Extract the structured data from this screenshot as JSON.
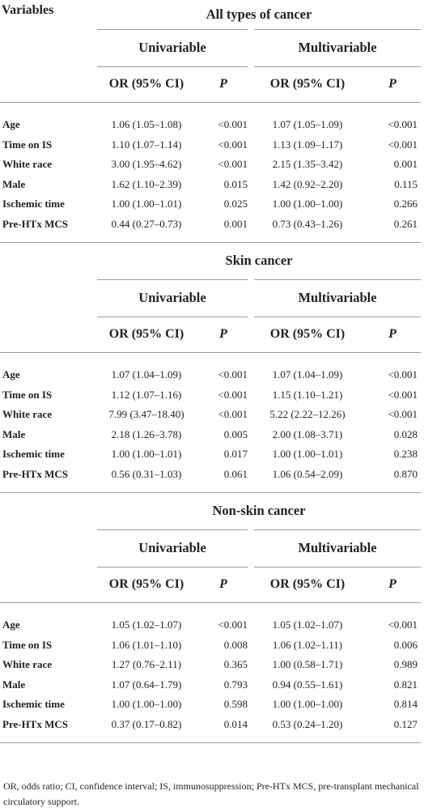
{
  "header": {
    "variables_label": "Variables"
  },
  "column_labels": {
    "univariable": "Univariable",
    "multivariable": "Multivariable",
    "or": "OR (95% CI)",
    "p": "P"
  },
  "sections": [
    {
      "title": "All types of cancer",
      "rows": [
        {
          "variable": "Age",
          "uni_or": "1.06 (1.05–1.08)",
          "uni_p": "<0.001",
          "multi_or": "1.07 (1.05–1.09)",
          "multi_p": "<0.001"
        },
        {
          "variable": "Time on IS",
          "uni_or": "1.10 (1.07–1.14)",
          "uni_p": "<0.001",
          "multi_or": "1.13 (1.09–1.17)",
          "multi_p": "<0.001"
        },
        {
          "variable": "White race",
          "uni_or": "3.00 (1.95–4.62)",
          "uni_p": "<0.001",
          "multi_or": "2.15 (1.35–3.42)",
          "multi_p": "0.001"
        },
        {
          "variable": "Male",
          "uni_or": "1.62 (1.10–2.39)",
          "uni_p": "0.015",
          "multi_or": "1.42 (0.92–2.20)",
          "multi_p": "0.115"
        },
        {
          "variable": "Ischemic time",
          "uni_or": "1.00 (1.00–1.01)",
          "uni_p": "0.025",
          "multi_or": "1.00 (1.00–1.00)",
          "multi_p": "0.266"
        },
        {
          "variable": "Pre-HTx MCS",
          "uni_or": "0.44 (0.27–0.73)",
          "uni_p": "0.001",
          "multi_or": "0.73 (0.43–1.26)",
          "multi_p": "0.261"
        }
      ]
    },
    {
      "title": "Skin cancer",
      "rows": [
        {
          "variable": "Age",
          "uni_or": "1.07 (1.04–1.09)",
          "uni_p": "<0.001",
          "multi_or": "1.07 (1.04–1.09)",
          "multi_p": "<0.001"
        },
        {
          "variable": "Time on IS",
          "uni_or": "1.12 (1.07–1.16)",
          "uni_p": "<0.001",
          "multi_or": "1.15 (1.10–1.21)",
          "multi_p": "<0.001"
        },
        {
          "variable": "White race",
          "uni_or": "7.99 (3.47–18.40)",
          "uni_p": "<0.001",
          "multi_or": "5.22 (2.22–12.26)",
          "multi_p": "<0.001"
        },
        {
          "variable": "Male",
          "uni_or": "2.18 (1.26–3.78)",
          "uni_p": "0.005",
          "multi_or": "2.00 (1.08–3.71)",
          "multi_p": "0.028"
        },
        {
          "variable": "Ischemic time",
          "uni_or": "1.00 (1.00–1.01)",
          "uni_p": "0.017",
          "multi_or": "1.00 (1.00–1.01)",
          "multi_p": "0.238"
        },
        {
          "variable": "Pre-HTx MCS",
          "uni_or": "0.56 (0.31–1.03)",
          "uni_p": "0.061",
          "multi_or": "1.06 (0.54–2.09)",
          "multi_p": "0.870"
        }
      ]
    },
    {
      "title": "Non-skin cancer",
      "rows": [
        {
          "variable": "Age",
          "uni_or": "1.05 (1.02–1.07)",
          "uni_p": "<0.001",
          "multi_or": "1.05 (1.02–1.07)",
          "multi_p": "<0.001"
        },
        {
          "variable": "Time on IS",
          "uni_or": "1.06 (1.01–1.10)",
          "uni_p": "0.008",
          "multi_or": "1.06 (1.02–1.11)",
          "multi_p": "0.006"
        },
        {
          "variable": "White race",
          "uni_or": "1.27 (0.76–2.11)",
          "uni_p": "0.365",
          "multi_or": "1.00 (0.58–1.71)",
          "multi_p": "0.989"
        },
        {
          "variable": "Male",
          "uni_or": "1.07 (0.64–1.79)",
          "uni_p": "0.793",
          "multi_or": "0.94 (0.55–1.61)",
          "multi_p": "0.821"
        },
        {
          "variable": "Ischemic time",
          "uni_or": "1.00 (1.00–1.00)",
          "uni_p": "0.598",
          "multi_or": "1.00 (1.00–1.00)",
          "multi_p": "0.814"
        },
        {
          "variable": "Pre-HTx MCS",
          "uni_or": "0.37 (0.17–0.82)",
          "uni_p": "0.014",
          "multi_or": "0.53 (0.24–1.20)",
          "multi_p": "0.127"
        }
      ]
    }
  ],
  "footnote": "OR, odds ratio; CI, confidence interval; IS, immunosuppression; Pre-HTx MCS, pre-transplant mechanical circulatory support."
}
